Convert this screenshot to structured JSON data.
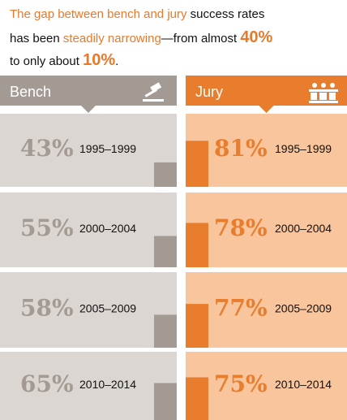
{
  "chart_data": {
    "type": "bar",
    "title_lines": [
      [
        {
          "text": "The gap between bench and jury",
          "highlight": true
        },
        {
          "text": " success rates"
        }
      ],
      [
        {
          "text": "has been "
        },
        {
          "text": "steadily narrowing",
          "highlight": true
        },
        {
          "text": "—from almost "
        },
        {
          "text": "40%",
          "highlight": true,
          "large": true
        }
      ],
      [
        {
          "text": "to only about "
        },
        {
          "text": "10%",
          "highlight": true,
          "large": true
        },
        {
          "text": "."
        }
      ]
    ],
    "highlight_color": "#e8792b",
    "categories": [
      "1995–1999",
      "2000–2004",
      "2005–2009",
      "2010–2014"
    ],
    "series": [
      {
        "name": "Bench",
        "color": "#a39b93",
        "panel_color": "#dbd6d1",
        "values": [
          43,
          55,
          58,
          65
        ],
        "value_labels": [
          "43%",
          "55%",
          "58%",
          "65%"
        ]
      },
      {
        "name": "Jury",
        "color": "#e87d2e",
        "panel_color": "#f8c59d",
        "values": [
          81,
          78,
          77,
          75
        ],
        "value_labels": [
          "81%",
          "78%",
          "77%",
          "75%"
        ]
      }
    ],
    "ylim": [
      0,
      100
    ]
  }
}
